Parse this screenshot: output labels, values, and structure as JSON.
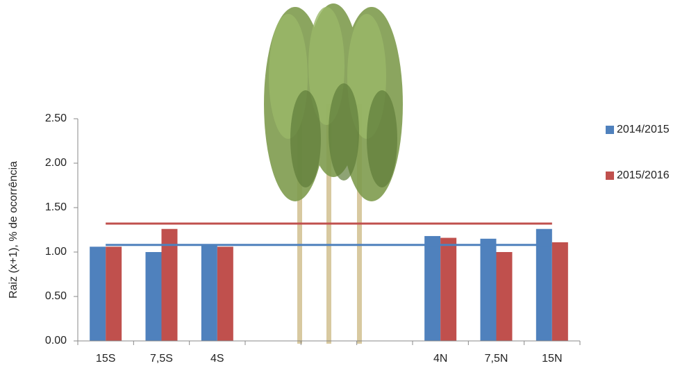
{
  "chart_data": {
    "type": "bar",
    "y_label": "Raiz (x+1), % de ocorrência",
    "categories": [
      "15S",
      "7,5S",
      "4S",
      null,
      null,
      null,
      "4N",
      "7,5N",
      "15N"
    ],
    "series": [
      {
        "name": "2014/2015",
        "color": "#4f81bd",
        "values": [
          1.06,
          1.0,
          1.08,
          null,
          null,
          null,
          1.18,
          1.15,
          1.26
        ]
      },
      {
        "name": "2015/2016",
        "color": "#c0504d",
        "values": [
          1.06,
          1.26,
          1.06,
          null,
          null,
          null,
          1.16,
          1.0,
          1.11
        ]
      }
    ],
    "reference_lines": [
      {
        "value": 1.08,
        "color": "#4f81bd"
      },
      {
        "value": 1.32,
        "color": "#c0504d"
      }
    ],
    "ylim": [
      0,
      2.5
    ],
    "yticks": [
      {
        "value": 0,
        "label": "0.00"
      },
      {
        "value": 0.5,
        "label": "0.50"
      },
      {
        "value": 1,
        "label": "1.00"
      },
      {
        "value": 1.5,
        "label": "1.50"
      },
      {
        "value": 2,
        "label": "2.00"
      },
      {
        "value": 2.5,
        "label": "2.50"
      }
    ],
    "legend": "right"
  }
}
